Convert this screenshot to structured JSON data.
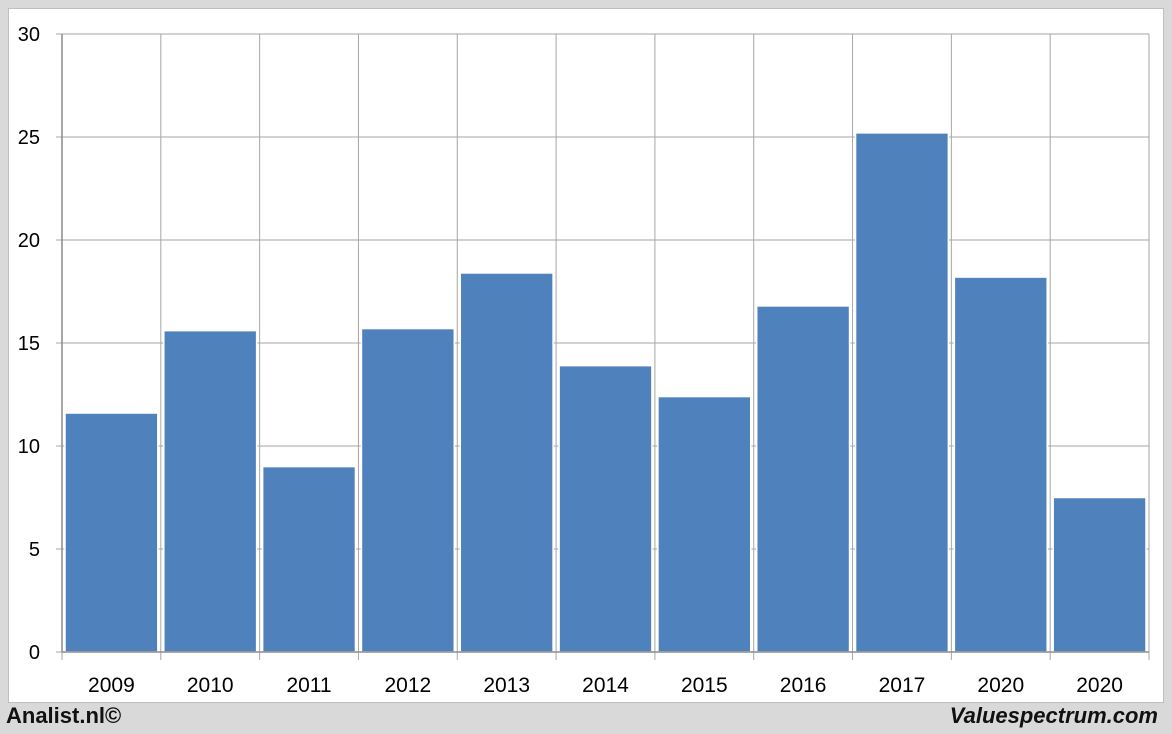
{
  "chart_data": {
    "type": "bar",
    "categories": [
      "2009",
      "2010",
      "2011",
      "2012",
      "2013",
      "2014",
      "2015",
      "2016",
      "2017",
      "2020",
      "2020"
    ],
    "values": [
      11.6,
      15.6,
      9.0,
      15.7,
      18.4,
      13.9,
      12.4,
      16.8,
      25.2,
      18.2,
      7.5
    ],
    "title": "",
    "xlabel": "",
    "ylabel": "",
    "ylim": [
      0,
      30
    ],
    "yticks": [
      0,
      5,
      10,
      15,
      20,
      25,
      30
    ],
    "grid": true,
    "bar_color": "#4f81bd",
    "grid_color": "#a6a6a6"
  },
  "footer": {
    "left": "Analist.nl©",
    "right": "Valuespectrum.com"
  }
}
